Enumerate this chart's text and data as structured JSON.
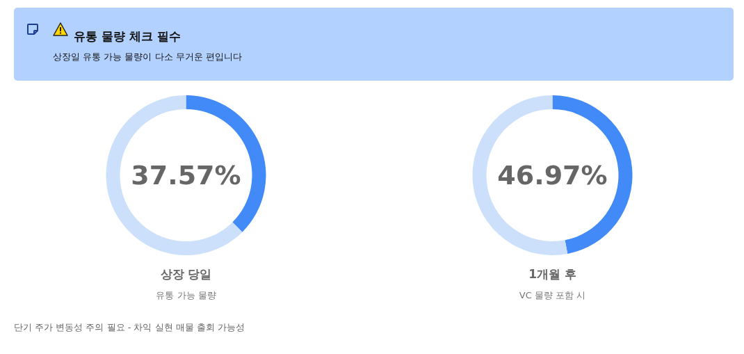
{
  "chart_data": [
    {
      "type": "other",
      "title": "유통 물량 체크 필수",
      "subtitle": "상장일 유통 가능 물량이 다소 무거운 편입니다",
      "annotations": [
        "단기 주가 변동성 주의 필요 - 차익 실현 매물 출회 가능성"
      ]
    },
    {
      "type": "donut",
      "title": "상장 당일",
      "subtitle": "유통 가능 물량",
      "categories": [
        null,
        null
      ],
      "values": [
        37.57,
        62.43
      ],
      "colors": [
        "#418af8",
        "#cce0fb"
      ],
      "value_labels": [
        "37.57%",
        null
      ]
    },
    {
      "type": "donut",
      "title": "1개월 후",
      "subtitle": "VC 물량 포함 시",
      "categories": [
        null,
        null
      ],
      "values": [
        46.97,
        53.03
      ],
      "colors": [
        "#418af8",
        "#cce0fb"
      ],
      "value_labels": [
        "46.97%",
        null
      ]
    }
  ]
}
